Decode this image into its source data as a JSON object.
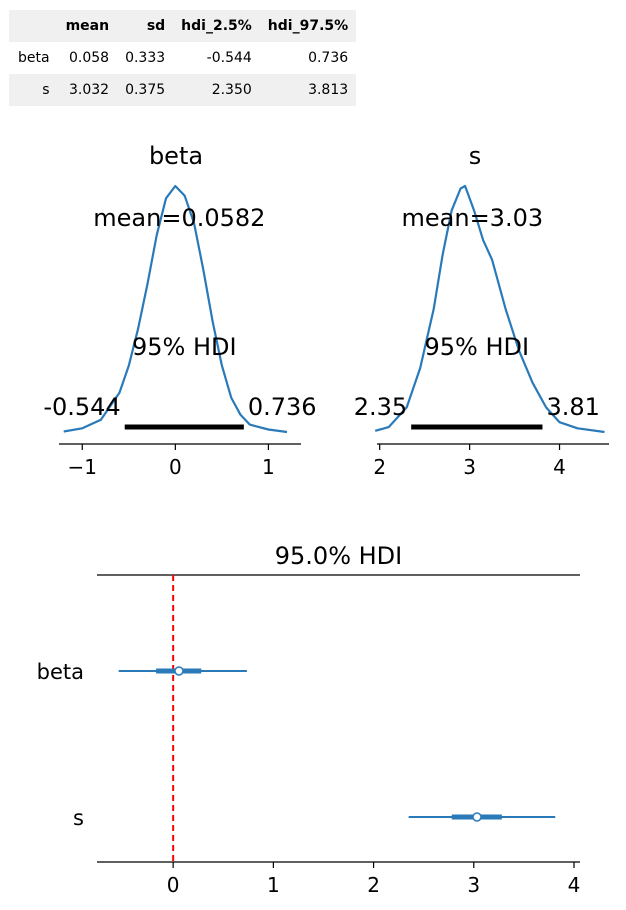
{
  "summary_table": {
    "columns": [
      "",
      "mean",
      "sd",
      "hdi_2.5%",
      "hdi_97.5%"
    ],
    "rows": [
      {
        "label": "beta",
        "mean": "0.058",
        "sd": "0.333",
        "hdi_low": "-0.544",
        "hdi_high": "0.736"
      },
      {
        "label": "s",
        "mean": "3.032",
        "sd": "0.375",
        "hdi_low": "2.350",
        "hdi_high": "3.813"
      }
    ]
  },
  "chart_data": [
    {
      "type": "line",
      "title": "beta",
      "mean_label": "mean=0.0582",
      "hdi_label": "95% HDI",
      "hdi": [
        -0.544,
        0.736
      ],
      "hdi_low_label": "-0.544",
      "hdi_high_label": "0.736",
      "xlim": [
        -1.25,
        1.35
      ],
      "xticks": [
        -1,
        0,
        1
      ],
      "xtick_labels": [
        "−1",
        "0",
        "1"
      ],
      "color": "#2a7ab9",
      "x": [
        -1.2,
        -1.0,
        -0.8,
        -0.6,
        -0.5,
        -0.4,
        -0.3,
        -0.2,
        -0.1,
        0.0,
        0.1,
        0.2,
        0.3,
        0.4,
        0.5,
        0.6,
        0.7,
        0.8,
        1.0,
        1.2
      ],
      "density": [
        0.002,
        0.015,
        0.05,
        0.16,
        0.27,
        0.42,
        0.6,
        0.8,
        0.95,
        1.0,
        0.96,
        0.85,
        0.66,
        0.45,
        0.27,
        0.14,
        0.07,
        0.03,
        0.01,
        0.0
      ]
    },
    {
      "type": "line",
      "title": "s",
      "mean_label": "mean=3.03",
      "hdi_label": "95% HDI",
      "hdi": [
        2.35,
        3.81
      ],
      "hdi_low_label": "2.35",
      "hdi_high_label": "3.81",
      "xlim": [
        1.97,
        4.55
      ],
      "xticks": [
        2,
        3,
        4
      ],
      "xtick_labels": [
        "2",
        "3",
        "4"
      ],
      "color": "#2a7ab9",
      "x": [
        1.95,
        2.1,
        2.3,
        2.45,
        2.6,
        2.7,
        2.8,
        2.9,
        2.95,
        3.05,
        3.15,
        3.25,
        3.4,
        3.55,
        3.7,
        3.85,
        4.0,
        4.2,
        4.5
      ],
      "density": [
        0.005,
        0.02,
        0.1,
        0.26,
        0.5,
        0.72,
        0.9,
        0.99,
        1.0,
        0.9,
        0.78,
        0.7,
        0.5,
        0.33,
        0.2,
        0.1,
        0.04,
        0.015,
        0.0
      ]
    },
    {
      "type": "forest",
      "title": "95.0% HDI",
      "ref_line": 0,
      "xlim": [
        -0.76,
        4.06
      ],
      "xticks": [
        0,
        1,
        2,
        3,
        4
      ],
      "xtick_labels": [
        "0",
        "1",
        "2",
        "3",
        "4"
      ],
      "color": "#2a7ab9",
      "ref_color": "#ff0000",
      "series": [
        {
          "name": "beta",
          "mean": 0.058,
          "hdi": [
            -0.544,
            0.736
          ],
          "iqr": [
            -0.17,
            0.28
          ]
        },
        {
          "name": "s",
          "mean": 3.032,
          "hdi": [
            2.35,
            3.813
          ],
          "iqr": [
            2.78,
            3.28
          ]
        }
      ]
    }
  ]
}
